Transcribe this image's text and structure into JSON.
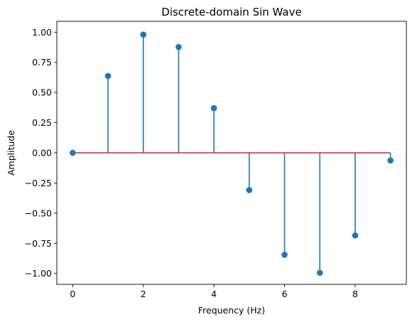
{
  "chart_data": {
    "type": "stem",
    "title": "Discrete-domain Sin Wave",
    "xlabel": "Frequency (Hz)",
    "ylabel": "Amplitude",
    "x": [
      0,
      1,
      2,
      3,
      4,
      5,
      6,
      7,
      8,
      9
    ],
    "y": [
      0.0,
      0.637,
      0.98,
      0.877,
      0.37,
      -0.309,
      -0.845,
      -0.995,
      -0.685,
      -0.063
    ],
    "xlim": [
      -0.45,
      9.45
    ],
    "ylim": [
      -1.09,
      1.09
    ],
    "xticks": [
      0,
      2,
      4,
      6,
      8
    ],
    "xtick_labels": [
      "0",
      "2",
      "4",
      "6",
      "8"
    ],
    "yticks": [
      -1.0,
      -0.75,
      -0.5,
      -0.25,
      0.0,
      0.25,
      0.5,
      0.75,
      1.0
    ],
    "ytick_labels": [
      "−1.00",
      "−0.75",
      "−0.50",
      "−0.25",
      "0.00",
      "0.25",
      "0.50",
      "0.75",
      "1.00"
    ],
    "baseline": 0,
    "grid": false,
    "colors": {
      "stem": "#1f77b4",
      "marker": "#1f77b4",
      "baseline": "#d62728",
      "axes": "#000000"
    }
  }
}
